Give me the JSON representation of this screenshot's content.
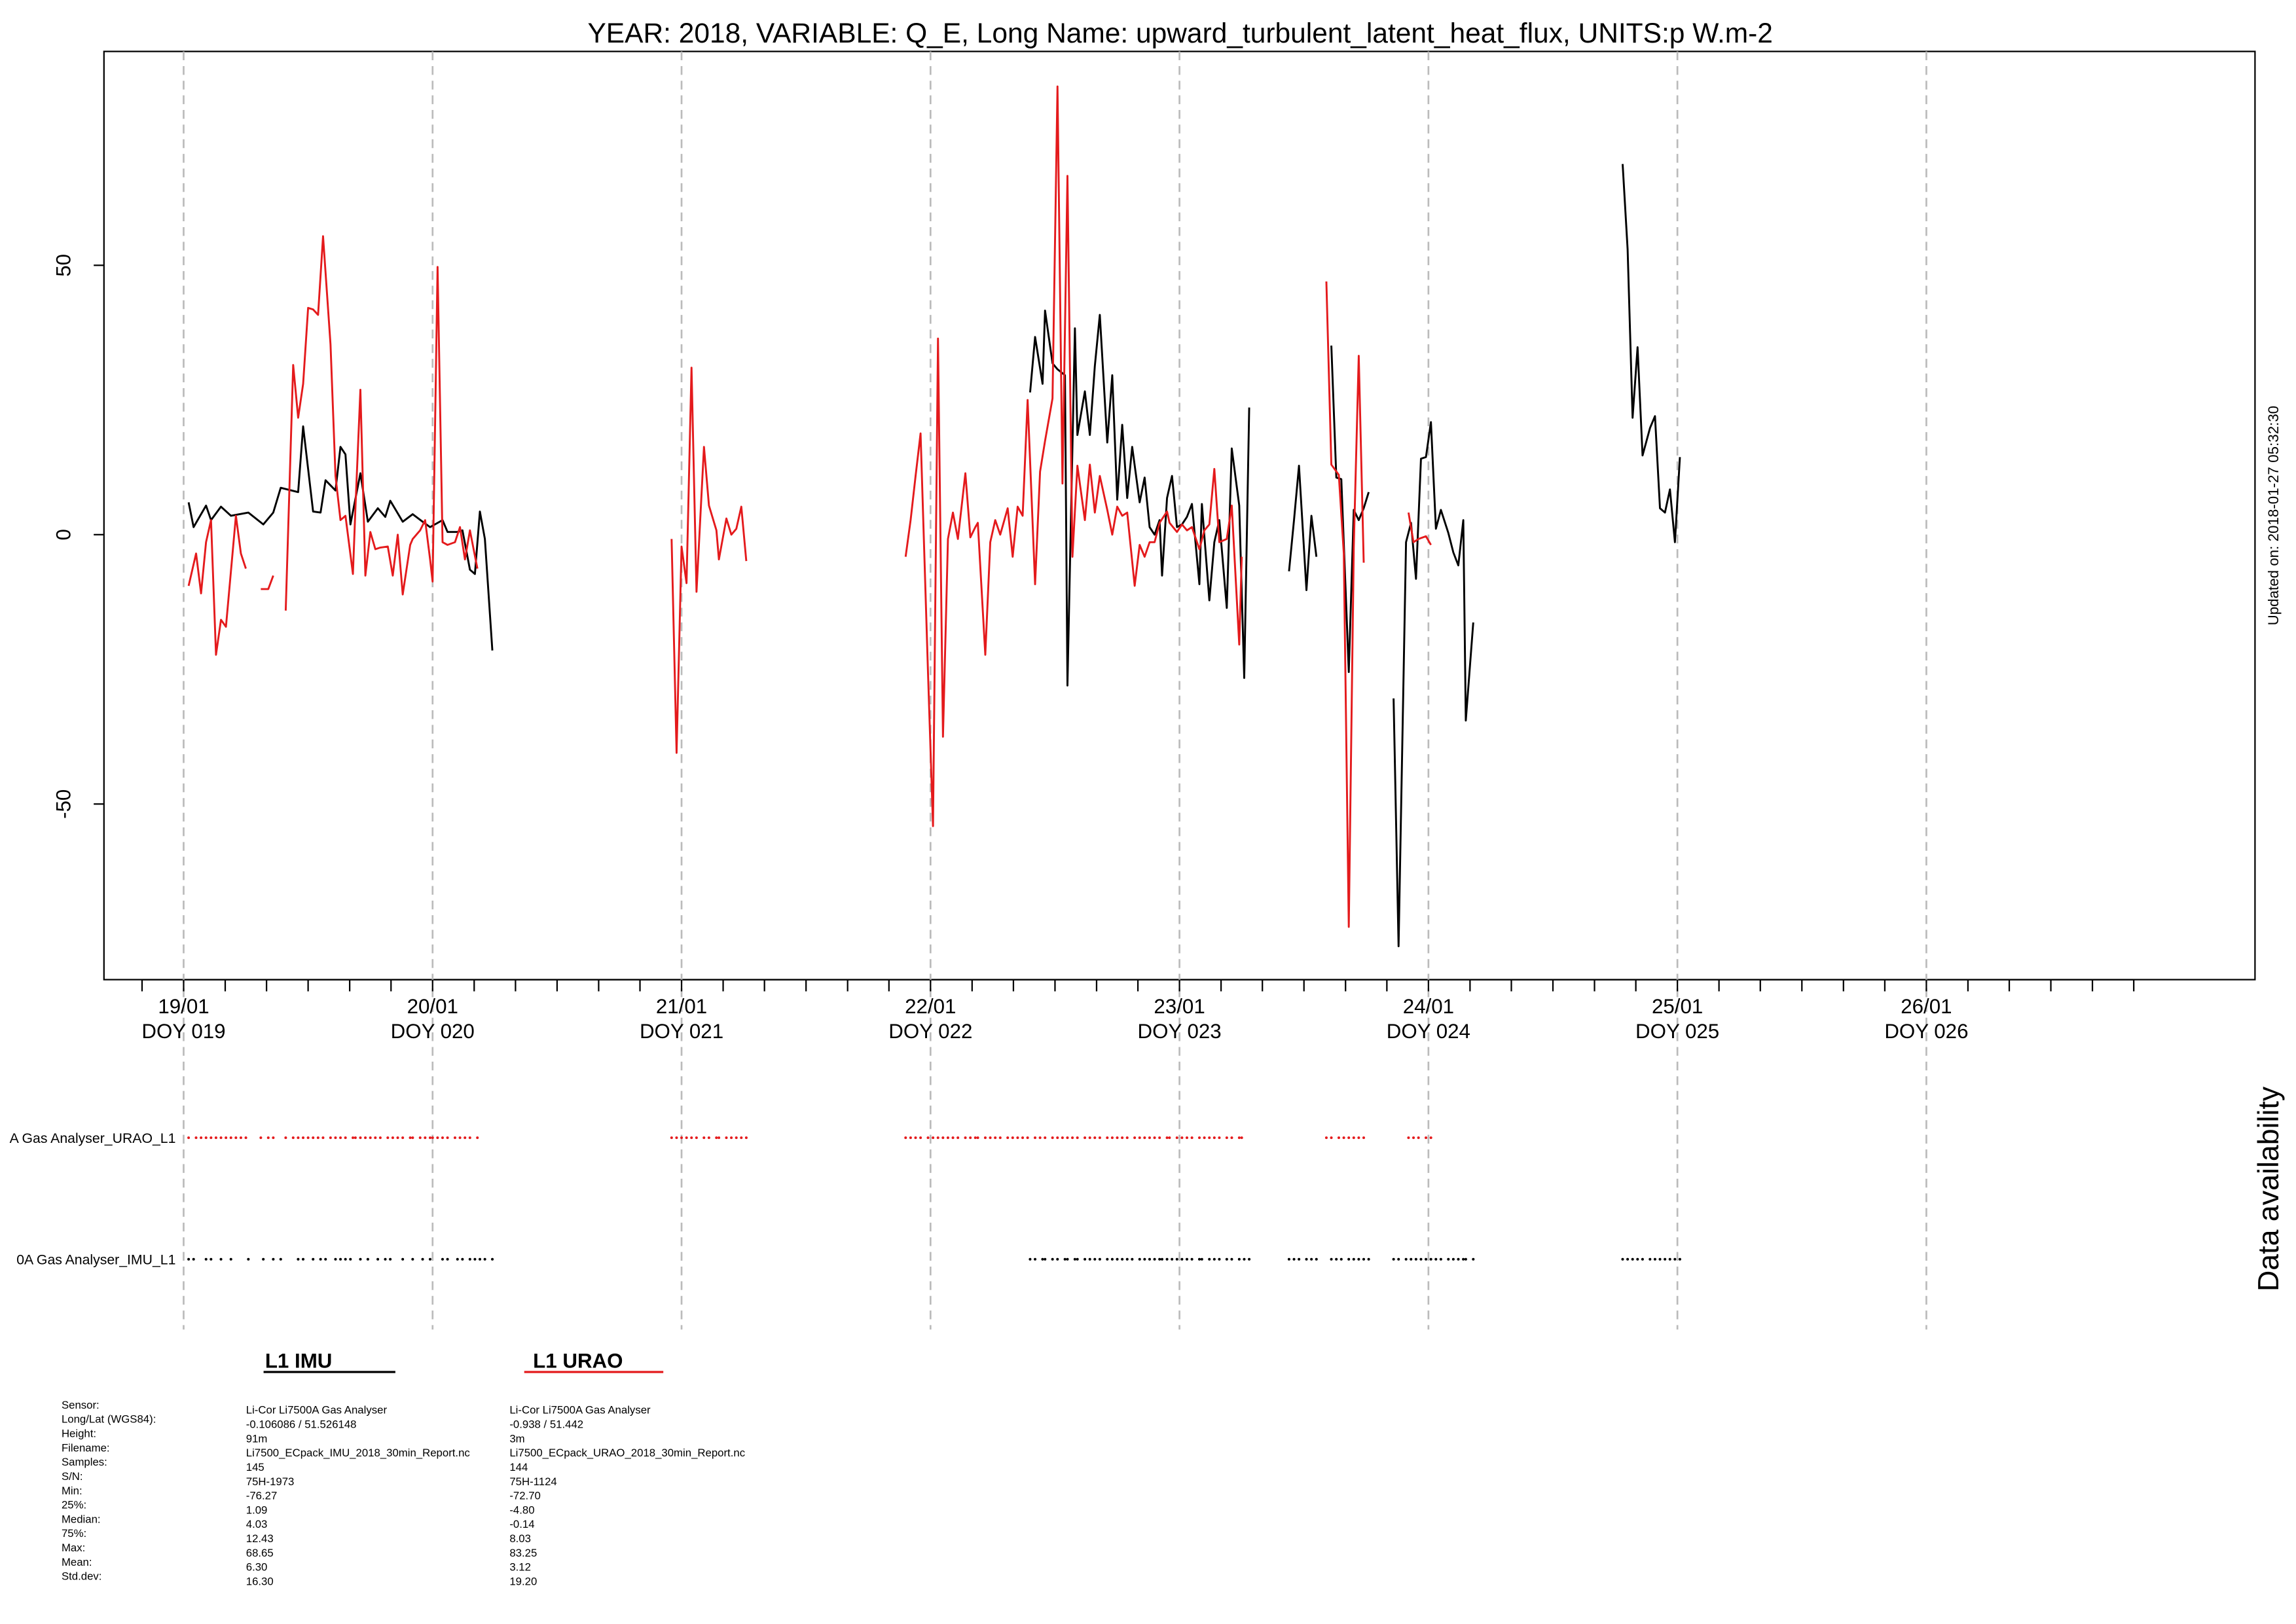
{
  "chart_data": {
    "type": "line",
    "title": "YEAR: 2018, VARIABLE: Q_E, Long Name: upward_turbulent_latent_heat_flux, UNITS:p W.m-2",
    "updated": "Updated on: 2018-01-27 05:32:30",
    "panel_label": "Data availability",
    "xlim": [
      18.68,
      27.32
    ],
    "ylim": [
      -82.6,
      89.7
    ],
    "yticks": [
      -50,
      0,
      50
    ],
    "xticks": [
      {
        "value": 19,
        "label": "19/01"
      },
      {
        "value": 20,
        "label": "20/01"
      },
      {
        "value": 21,
        "label": "21/01"
      },
      {
        "value": 22,
        "label": "22/01"
      },
      {
        "value": 23,
        "label": "23/01"
      },
      {
        "value": 24,
        "label": "24/01"
      },
      {
        "value": 25,
        "label": "25/01"
      },
      {
        "value": 26,
        "label": "26/01"
      }
    ],
    "xtick_sublabels": [
      "DOY 019",
      "DOY 020",
      "DOY 021",
      "DOY 022",
      "DOY 023",
      "DOY 024",
      "DOY 025",
      "DOY 026"
    ],
    "xminorticks": [
      18.833,
      19.167,
      19.333,
      19.5,
      19.667,
      19.833,
      20.167,
      20.333,
      20.5,
      20.667,
      20.833,
      21.167,
      21.333,
      21.5,
      21.667,
      21.833,
      22.167,
      22.333,
      22.5,
      22.667,
      22.833,
      23.167,
      23.333,
      23.5,
      23.667,
      23.833,
      24.167,
      24.333,
      24.5,
      24.667,
      24.833,
      25.167,
      25.333,
      25.5,
      25.667,
      25.833,
      26.167,
      26.333,
      26.5,
      26.667,
      26.833
    ],
    "x_grid": true,
    "series": [
      {
        "name": "L1 IMU",
        "color": "#000000",
        "availability_label": "0A Gas Analyser_IMU_L1",
        "x": [
          19.02,
          19.04,
          19.09,
          19.11,
          19.15,
          19.19,
          19.26,
          19.32,
          19.36,
          19.39,
          19.46,
          19.48,
          19.52,
          19.55,
          19.57,
          19.61,
          19.63,
          19.65,
          19.67,
          19.71,
          19.74,
          19.78,
          19.81,
          19.83,
          19.88,
          19.92,
          19.96,
          19.99,
          20.04,
          20.06,
          20.1,
          20.12,
          20.15,
          20.17,
          20.19,
          20.21,
          20.24,
          null,
          22.4,
          22.42,
          22.45,
          22.46,
          22.49,
          22.51,
          22.54,
          22.55,
          22.58,
          22.59,
          22.62,
          22.64,
          22.66,
          22.68,
          22.71,
          22.73,
          22.75,
          22.77,
          22.79,
          22.81,
          22.84,
          22.86,
          22.88,
          22.9,
          22.92,
          22.93,
          22.95,
          22.97,
          22.99,
          23.01,
          23.03,
          23.05,
          23.08,
          23.09,
          23.12,
          23.14,
          23.16,
          23.19,
          23.21,
          23.24,
          23.26,
          23.28,
          null,
          23.44,
          23.46,
          23.48,
          23.51,
          23.53,
          23.55,
          null,
          23.61,
          23.63,
          23.65,
          23.68,
          23.7,
          23.72,
          23.74,
          23.76,
          null,
          23.86,
          23.88,
          23.91,
          23.93,
          23.95,
          23.97,
          23.99,
          24.01,
          24.03,
          24.05,
          24.08,
          24.1,
          24.12,
          24.14,
          24.15,
          24.18,
          null,
          24.78,
          24.8,
          24.82,
          24.84,
          24.86,
          24.89,
          24.91,
          24.93,
          24.95,
          24.97,
          24.99,
          25.01
        ],
        "values": [
          6.0,
          1.4,
          5.4,
          2.7,
          5.2,
          3.5,
          4.1,
          1.9,
          4.1,
          8.7,
          7.9,
          20.1,
          4.3,
          4.1,
          10.1,
          8.2,
          16.3,
          14.9,
          1.9,
          11.4,
          2.4,
          4.9,
          3.3,
          6.3,
          2.4,
          3.8,
          2.4,
          1.4,
          2.7,
          0.5,
          0.5,
          0.8,
          -6.5,
          -7.3,
          4.3,
          -0.8,
          -21.5,
          null,
          26.4,
          36.7,
          28.0,
          41.6,
          31.8,
          30.7,
          29.6,
          -28.0,
          38.3,
          18.5,
          26.6,
          18.5,
          31.3,
          40.8,
          17.1,
          29.6,
          6.5,
          20.4,
          6.8,
          16.3,
          6.0,
          10.6,
          1.4,
          0.0,
          2.7,
          -7.6,
          6.8,
          10.9,
          1.4,
          1.9,
          3.3,
          5.7,
          -9.2,
          5.7,
          -12.2,
          -1.4,
          2.7,
          -13.6,
          16.0,
          5.4,
          -26.6,
          23.6,
          null,
          -6.8,
          2.7,
          12.8,
          -10.3,
          3.5,
          -4.1,
          null,
          35.1,
          10.6,
          10.3,
          -25.5,
          4.6,
          2.7,
          4.9,
          7.9,
          null,
          -30.4,
          -76.4,
          -1.4,
          2.2,
          -8.2,
          14.1,
          14.4,
          20.9,
          1.1,
          4.6,
          0.3,
          -3.3,
          -5.7,
          2.7,
          -34.5,
          -16.3,
          null,
          68.8,
          53.0,
          21.7,
          34.8,
          14.7,
          19.8,
          22.0,
          4.9,
          4.1,
          8.4,
          -1.4,
          14.4
        ]
      },
      {
        "name": "L1 URAO",
        "color": "#e41a1c",
        "availability_label": "A Gas Analyser_URAO_L1",
        "x": [
          19.02,
          19.05,
          19.07,
          19.09,
          19.11,
          19.13,
          19.15,
          19.17,
          19.19,
          19.21,
          19.23,
          19.25,
          null,
          19.31,
          19.34,
          19.36,
          null,
          19.41,
          19.44,
          19.46,
          19.48,
          19.5,
          19.52,
          19.54,
          19.56,
          19.59,
          19.61,
          19.63,
          19.65,
          19.68,
          19.69,
          19.71,
          19.73,
          19.75,
          19.77,
          19.79,
          19.82,
          19.84,
          19.86,
          19.88,
          19.91,
          19.92,
          19.95,
          19.97,
          19.99,
          20.0,
          20.02,
          20.04,
          20.06,
          20.09,
          20.11,
          20.13,
          20.15,
          20.18,
          null,
          20.96,
          20.98,
          21.0,
          21.02,
          21.04,
          21.06,
          21.09,
          21.11,
          21.14,
          21.15,
          21.18,
          21.2,
          21.22,
          21.24,
          21.26,
          null,
          21.9,
          21.92,
          21.94,
          21.96,
          21.99,
          22.01,
          22.03,
          22.05,
          22.07,
          22.09,
          22.11,
          22.14,
          22.16,
          22.18,
          22.19,
          22.22,
          22.24,
          22.26,
          22.28,
          22.31,
          22.33,
          22.35,
          22.37,
          22.39,
          22.42,
          22.44,
          22.46,
          22.49,
          22.51,
          22.53,
          22.55,
          22.57,
          22.59,
          22.62,
          22.64,
          22.66,
          22.68,
          22.71,
          22.73,
          22.75,
          22.77,
          22.79,
          22.82,
          22.84,
          22.86,
          22.88,
          22.9,
          22.92,
          22.95,
          22.96,
          22.99,
          23.01,
          23.03,
          23.05,
          23.08,
          23.1,
          23.12,
          23.14,
          23.16,
          23.19,
          23.21,
          23.24,
          23.25,
          null,
          23.59,
          23.61,
          23.64,
          23.66,
          23.68,
          23.7,
          23.72,
          23.74,
          null,
          23.92,
          23.94,
          23.96,
          23.99,
          24.01
        ],
        "values": [
          -9.5,
          -3.5,
          -10.9,
          -1.4,
          2.7,
          -22.3,
          -15.8,
          -17.1,
          -6.8,
          3.5,
          -3.5,
          -6.3,
          null,
          -10.1,
          -10.1,
          -7.6,
          null,
          -14.1,
          31.5,
          21.7,
          28.0,
          42.1,
          41.8,
          40.8,
          55.4,
          35.3,
          10.9,
          2.7,
          3.5,
          -7.3,
          4.9,
          26.9,
          -7.6,
          0.5,
          -2.7,
          -2.4,
          -2.2,
          -7.6,
          0.0,
          -11.1,
          -1.9,
          -0.8,
          0.8,
          2.7,
          -4.6,
          -8.7,
          49.7,
          -1.4,
          -1.9,
          -1.4,
          1.4,
          -4.6,
          0.8,
          -6.3,
          null,
          -0.8,
          -40.5,
          -2.2,
          -9.0,
          31.0,
          -10.6,
          16.3,
          5.4,
          0.8,
          -4.6,
          3.0,
          0.0,
          1.1,
          5.2,
          -4.9,
          null,
          -4.1,
          2.7,
          10.9,
          18.8,
          -25.8,
          -54.1,
          36.4,
          -37.5,
          -0.8,
          4.1,
          -0.8,
          11.4,
          -0.5,
          1.4,
          2.2,
          -22.3,
          -1.4,
          2.7,
          0.0,
          4.9,
          -4.1,
          5.2,
          3.5,
          25.0,
          -9.2,
          11.7,
          17.4,
          25.3,
          83.2,
          9.5,
          66.6,
          -4.1,
          12.8,
          2.7,
          13.0,
          4.1,
          10.9,
          4.6,
          0.0,
          5.2,
          3.5,
          4.1,
          -9.5,
          -1.9,
          -4.1,
          -1.4,
          -1.4,
          2.2,
          4.3,
          2.2,
          0.5,
          1.9,
          0.8,
          1.4,
          -2.7,
          0.8,
          1.9,
          12.2,
          -1.4,
          -0.8,
          5.4,
          -20.4,
          -4.1,
          null,
          47.0,
          13.0,
          11.1,
          -3.5,
          -72.8,
          -2.4,
          33.2,
          -5.2,
          null,
          4.1,
          -1.4,
          -0.8,
          -0.3,
          -1.9
        ]
      }
    ]
  },
  "stats": {
    "labels": [
      "Sensor:",
      "Long/Lat (WGS84):",
      "Height:",
      "Filename:",
      "Samples:",
      "S/N:",
      "Min:",
      "25%:",
      "Median:",
      "75%:",
      "Max:",
      "Mean:",
      "Std.dev:"
    ],
    "columns": [
      [
        "Li-Cor Li7500A Gas Analyser",
        " -0.106086 / 51.526148",
        "91m",
        "Li7500_ECpack_IMU_2018_30min_Report.nc",
        "145",
        "75H-1973",
        "-76.27",
        "1.09",
        "4.03",
        "12.43",
        "68.65",
        "6.30",
        "16.30"
      ],
      [
        "Li-Cor Li7500A Gas Analyser",
        " -0.938 / 51.442",
        "3m",
        "Li7500_ECpack_URAO_2018_30min_Report.nc",
        "144",
        "75H-1124",
        "-72.70",
        "-4.80",
        "-0.14",
        "8.03",
        "83.25",
        "3.12",
        "19.20"
      ]
    ]
  }
}
